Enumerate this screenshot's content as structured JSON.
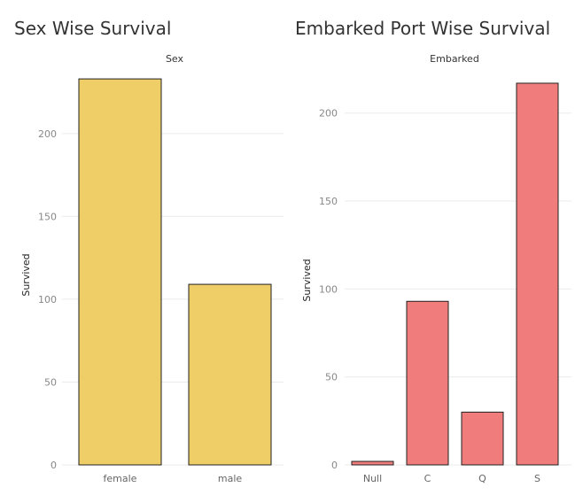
{
  "chart_data": [
    {
      "type": "bar",
      "title": "Sex Wise Survival",
      "column_header": "Sex",
      "xlabel": "",
      "ylabel": "Survived",
      "categories": [
        "female",
        "male"
      ],
      "values": [
        233,
        109
      ],
      "ylim": [
        0,
        240
      ],
      "yticks": [
        0,
        50,
        100,
        150,
        200
      ],
      "grid": true,
      "bar_color": "#EFCD67"
    },
    {
      "type": "bar",
      "title": "Embarked Port Wise Survival",
      "column_header": "Embarked",
      "xlabel": "",
      "ylabel": "Survived",
      "categories": [
        "Null",
        "C",
        "Q",
        "S"
      ],
      "values": [
        2,
        93,
        30,
        217
      ],
      "ylim": [
        0,
        220
      ],
      "yticks": [
        0,
        50,
        100,
        150,
        200
      ],
      "grid": true,
      "bar_color": "#F07C7C"
    }
  ]
}
